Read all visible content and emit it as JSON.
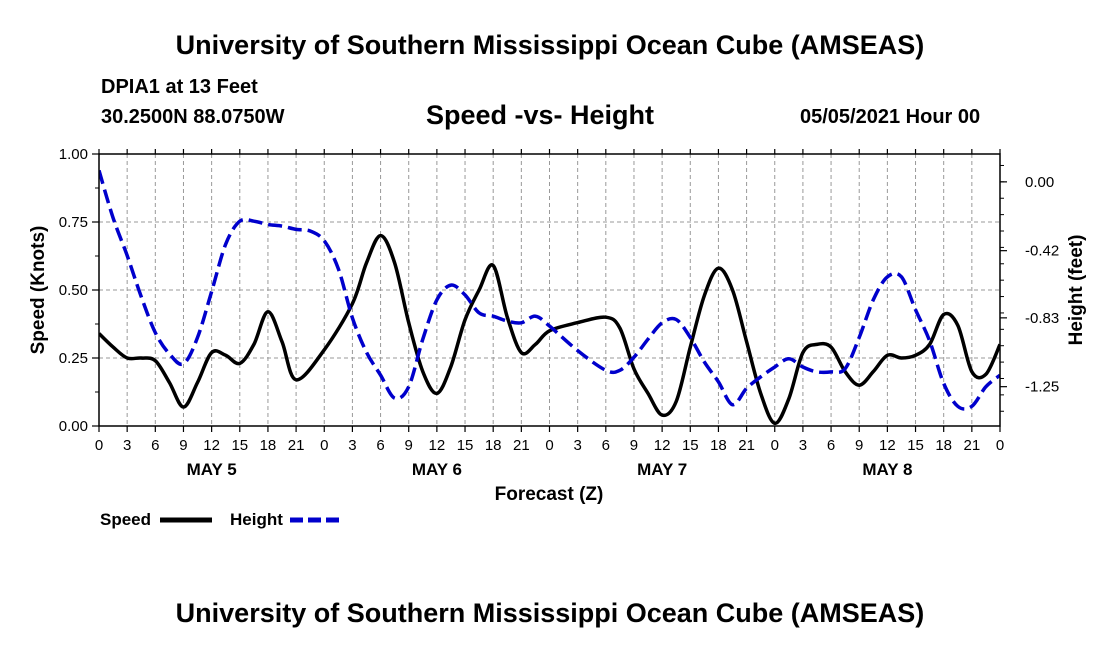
{
  "header": {
    "title": "University of Southern Mississippi Ocean Cube (AMSEAS)",
    "station": "DPIA1 at 13 Feet",
    "coords": "30.2500N  88.0750W",
    "chart_title": "Speed -vs- Height",
    "date": "05/05/2021 Hour 00"
  },
  "footer": {
    "title": "University of Southern Mississippi Ocean Cube (AMSEAS)"
  },
  "colors": {
    "speed": "#000000",
    "height": "#0000cc",
    "grid": "#999999"
  },
  "chart_data": {
    "type": "line",
    "title": "Speed -vs- Height",
    "xlabel": "Forecast (Z)",
    "ylabel": "Speed (Knots)",
    "y2label": "Height (feet)",
    "xlim": [
      0,
      96
    ],
    "ylim": [
      0,
      1
    ],
    "y2lim": [
      -1.49,
      0.17
    ],
    "xtick_hours": [
      0,
      3,
      6,
      9,
      12,
      15,
      18,
      21,
      24,
      27,
      30,
      33,
      36,
      39,
      42,
      45,
      48,
      51,
      54,
      57,
      60,
      63,
      66,
      69,
      72,
      75,
      78,
      81,
      84,
      87,
      90,
      93,
      96
    ],
    "xtick_labels": [
      "0",
      "3",
      "6",
      "9",
      "12",
      "15",
      "18",
      "21",
      "0",
      "3",
      "6",
      "9",
      "12",
      "15",
      "18",
      "21",
      "0",
      "3",
      "6",
      "9",
      "12",
      "15",
      "18",
      "21",
      "0",
      "3",
      "6",
      "9",
      "12",
      "15",
      "18",
      "21",
      "0"
    ],
    "day_labels": [
      {
        "hour": 12,
        "label": "MAY 5"
      },
      {
        "hour": 36,
        "label": "MAY 6"
      },
      {
        "hour": 60,
        "label": "MAY 7"
      },
      {
        "hour": 84,
        "label": "MAY 8"
      }
    ],
    "ytick_values": [
      0,
      0.25,
      0.5,
      0.75,
      1.0
    ],
    "ytick_labels": [
      "0.00",
      "0.25",
      "0.50",
      "0.75",
      "1.00"
    ],
    "y2tick_values": [
      0.0,
      -0.42,
      -0.83,
      -1.25
    ],
    "y2tick_labels": [
      "0.00",
      "-0.42",
      "-0.83",
      "-1.25"
    ],
    "series": [
      {
        "name": "Speed",
        "axis": "left",
        "style": "solid",
        "x": [
          0,
          1.5,
          3,
          4.5,
          6,
          7.5,
          9,
          10.5,
          12,
          13.5,
          15,
          16.5,
          18,
          19.5,
          21,
          24,
          27,
          28.5,
          30,
          31.5,
          33,
          34.5,
          36,
          37.5,
          39,
          40.5,
          42,
          43.5,
          45,
          46.5,
          48,
          51,
          54,
          55.5,
          57,
          58.5,
          60,
          61.5,
          63,
          64.5,
          66,
          67.5,
          69,
          70.5,
          72,
          73.5,
          75,
          76.5,
          78,
          79.5,
          81,
          82.5,
          84,
          85.5,
          87,
          88.5,
          90,
          91.5,
          93,
          94.5,
          96
        ],
        "values": [
          0.34,
          0.29,
          0.25,
          0.25,
          0.24,
          0.16,
          0.07,
          0.16,
          0.27,
          0.26,
          0.23,
          0.3,
          0.42,
          0.31,
          0.17,
          0.28,
          0.45,
          0.6,
          0.7,
          0.6,
          0.38,
          0.2,
          0.12,
          0.22,
          0.39,
          0.5,
          0.59,
          0.4,
          0.27,
          0.3,
          0.35,
          0.38,
          0.4,
          0.36,
          0.21,
          0.12,
          0.04,
          0.09,
          0.29,
          0.48,
          0.58,
          0.5,
          0.31,
          0.12,
          0.01,
          0.1,
          0.27,
          0.3,
          0.29,
          0.2,
          0.15,
          0.2,
          0.26,
          0.25,
          0.26,
          0.3,
          0.41,
          0.37,
          0.2,
          0.19,
          0.3
        ]
      },
      {
        "name": "Height",
        "axis": "right",
        "style": "dashed",
        "x": [
          0,
          1.5,
          3,
          4.5,
          6,
          7.5,
          9,
          10.5,
          12,
          13.5,
          15,
          16.5,
          18,
          19.5,
          21,
          22.5,
          24,
          25.5,
          27,
          28.5,
          30,
          31.5,
          33,
          34.5,
          36,
          37.5,
          39,
          40.5,
          42,
          43.5,
          45,
          46.5,
          48,
          51,
          54,
          55.5,
          57,
          58.5,
          60,
          61.5,
          63,
          64.5,
          66,
          67.5,
          69,
          70.5,
          72,
          73.5,
          75,
          76.5,
          78,
          79.5,
          81,
          82.5,
          84,
          85.5,
          87,
          88.5,
          90,
          91.5,
          93,
          94.5,
          96
        ],
        "values": [
          0.07,
          -0.22,
          -0.45,
          -0.7,
          -0.92,
          -1.05,
          -1.11,
          -0.95,
          -0.67,
          -0.38,
          -0.24,
          -0.24,
          -0.26,
          -0.27,
          -0.29,
          -0.3,
          -0.36,
          -0.53,
          -0.83,
          -1.04,
          -1.18,
          -1.32,
          -1.25,
          -0.96,
          -0.72,
          -0.63,
          -0.69,
          -0.8,
          -0.82,
          -0.85,
          -0.86,
          -0.82,
          -0.88,
          -1.03,
          -1.15,
          -1.15,
          -1.07,
          -0.96,
          -0.86,
          -0.84,
          -0.95,
          -1.1,
          -1.22,
          -1.36,
          -1.26,
          -1.19,
          -1.13,
          -1.08,
          -1.13,
          -1.16,
          -1.16,
          -1.14,
          -0.95,
          -0.72,
          -0.58,
          -0.58,
          -0.78,
          -0.97,
          -1.23,
          -1.37,
          -1.37,
          -1.25,
          -1.18
        ]
      }
    ],
    "legend": [
      {
        "label": "Speed",
        "style": "solid"
      },
      {
        "label": "Height",
        "style": "dashed"
      }
    ]
  }
}
